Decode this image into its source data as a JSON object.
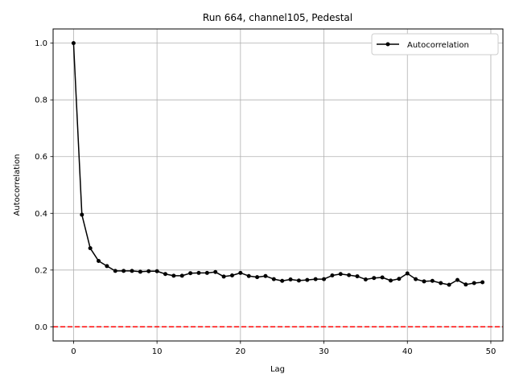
{
  "chart_data": {
    "type": "line",
    "title": "Run 664, channel105, Pedestal",
    "xlabel": "Lag",
    "ylabel": "Autocorrelation",
    "xlim": [
      -2.45,
      51.45
    ],
    "ylim": [
      -0.05,
      1.05
    ],
    "xticks": [
      0,
      10,
      20,
      30,
      40,
      50
    ],
    "yticks": [
      0.0,
      0.2,
      0.4,
      0.6,
      0.8,
      1.0
    ],
    "xtick_labels": [
      "0",
      "10",
      "20",
      "30",
      "40",
      "50"
    ],
    "ytick_labels": [
      "0.0",
      "0.2",
      "0.4",
      "0.6",
      "0.8",
      "1.0"
    ],
    "grid": true,
    "legend_position": "top-right",
    "series": [
      {
        "name": "Autocorrelation",
        "color": "#000000",
        "x": [
          0,
          1,
          2,
          3,
          4,
          5,
          6,
          7,
          8,
          9,
          10,
          11,
          12,
          13,
          14,
          15,
          16,
          17,
          18,
          19,
          20,
          21,
          22,
          23,
          24,
          25,
          26,
          27,
          28,
          29,
          30,
          31,
          32,
          33,
          34,
          35,
          36,
          37,
          38,
          39,
          40,
          41,
          42,
          43,
          44,
          45,
          46,
          47,
          48,
          49
        ],
        "y": [
          1.0,
          0.395,
          0.277,
          0.232,
          0.214,
          0.197,
          0.197,
          0.197,
          0.194,
          0.196,
          0.196,
          0.186,
          0.18,
          0.18,
          0.189,
          0.19,
          0.19,
          0.193,
          0.177,
          0.181,
          0.19,
          0.179,
          0.175,
          0.179,
          0.168,
          0.162,
          0.167,
          0.163,
          0.165,
          0.168,
          0.168,
          0.181,
          0.186,
          0.182,
          0.178,
          0.167,
          0.172,
          0.174,
          0.163,
          0.169,
          0.188,
          0.168,
          0.16,
          0.162,
          0.154,
          0.148,
          0.165,
          0.149,
          0.154,
          0.157
        ]
      }
    ],
    "reference_line": {
      "y": 0.0,
      "color": "#ff0000",
      "style": "dashed"
    }
  }
}
